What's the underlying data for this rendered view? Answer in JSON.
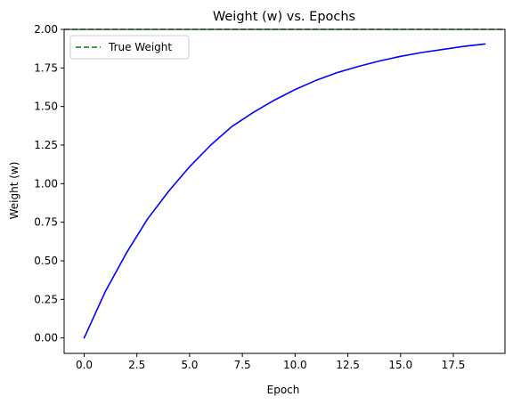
{
  "chart_data": {
    "type": "line",
    "title": "Weight (w) vs. Epochs",
    "xlabel": "Epoch",
    "ylabel": "Weight (w)",
    "xlim": [
      -0.95,
      19.95
    ],
    "ylim": [
      -0.1,
      2.0
    ],
    "xticks": [
      0.0,
      2.5,
      5.0,
      7.5,
      10.0,
      12.5,
      15.0,
      17.5
    ],
    "xtick_labels": [
      "0.0",
      "2.5",
      "5.0",
      "7.5",
      "10.0",
      "12.5",
      "15.0",
      "17.5"
    ],
    "yticks": [
      0.0,
      0.25,
      0.5,
      0.75,
      1.0,
      1.25,
      1.5,
      1.75,
      2.0
    ],
    "ytick_labels": [
      "0.00",
      "0.25",
      "0.50",
      "0.75",
      "1.00",
      "1.25",
      "1.50",
      "1.75",
      "2.00"
    ],
    "grid": false,
    "legend_position": "upper-left",
    "series": [
      {
        "name": "",
        "color": "#0000ff",
        "style": "solid",
        "x": [
          0,
          1,
          2,
          3,
          4,
          5,
          6,
          7,
          8,
          9,
          10,
          11,
          12,
          13,
          14,
          15,
          16,
          17,
          18,
          19
        ],
        "y": [
          0.0,
          0.3,
          0.55,
          0.77,
          0.95,
          1.11,
          1.25,
          1.37,
          1.46,
          1.54,
          1.61,
          1.67,
          1.72,
          1.76,
          1.795,
          1.825,
          1.85,
          1.87,
          1.89,
          1.905
        ]
      }
    ],
    "reference_lines": [
      {
        "name": "True Weight",
        "orientation": "horizontal",
        "value": 2.0,
        "color": "#008000",
        "style": "dashed"
      }
    ]
  }
}
